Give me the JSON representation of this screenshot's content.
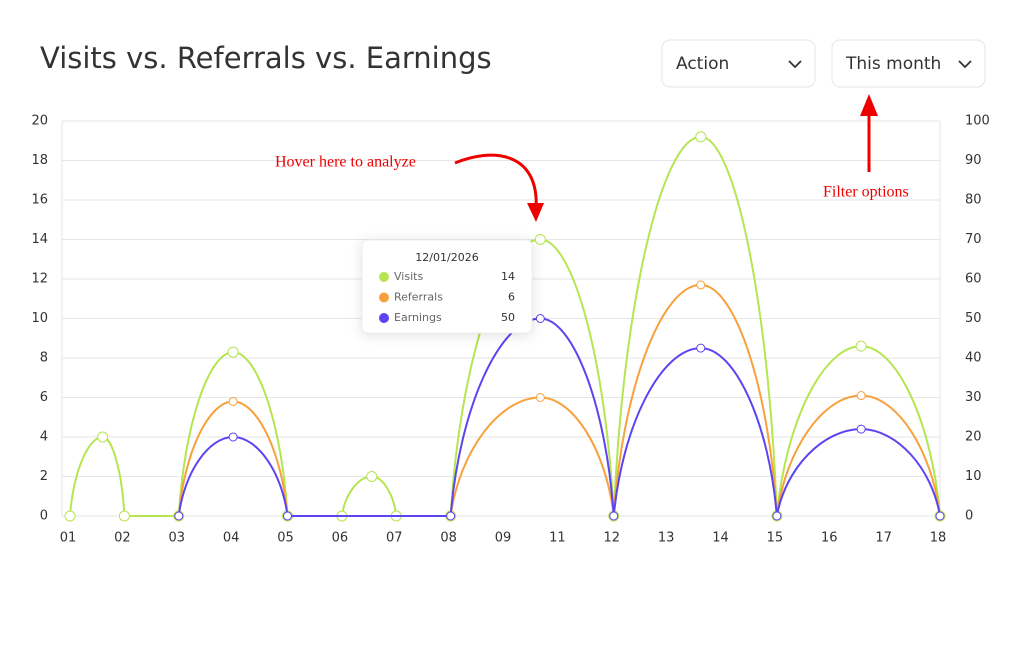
{
  "chart_data": {
    "type": "line",
    "title": "Visits vs. Referrals vs. Earnings",
    "controls": [
      "Action",
      "This month"
    ],
    "annotations": [
      "Hover here to analyze",
      "Filter options"
    ],
    "xlim": [
      0,
      16
    ],
    "xticks": [
      {
        "value": 0,
        "label": "01"
      },
      {
        "value": 1,
        "label": "02"
      },
      {
        "value": 2,
        "label": "03"
      },
      {
        "value": 3,
        "label": "04"
      },
      {
        "value": 4,
        "label": "05"
      },
      {
        "value": 5,
        "label": "06"
      },
      {
        "value": 6,
        "label": "07"
      },
      {
        "value": 7,
        "label": "08"
      },
      {
        "value": 8,
        "label": "09"
      },
      {
        "value": 9,
        "label": "11"
      },
      {
        "value": 10,
        "label": "12"
      },
      {
        "value": 11,
        "label": "13"
      },
      {
        "value": 12,
        "label": "14"
      },
      {
        "value": 13,
        "label": "15"
      },
      {
        "value": 14,
        "label": "16"
      },
      {
        "value": 15,
        "label": "17"
      },
      {
        "value": 16,
        "label": "18"
      }
    ],
    "ylim": [
      0,
      20
    ],
    "yticks": [
      0,
      2,
      4,
      6,
      8,
      10,
      12,
      14,
      16,
      18,
      20
    ],
    "y2lim": [
      0,
      100
    ],
    "y2ticks": [
      0,
      10,
      20,
      30,
      40,
      50,
      60,
      70,
      80,
      90,
      100
    ],
    "grid": true,
    "series": [
      {
        "name": "Visits",
        "color": "#b5e550",
        "x": [
          0,
          0.6,
          1,
          2,
          3,
          4,
          5,
          5.55,
          6,
          7,
          8.65,
          10,
          11.6,
          13,
          14.55,
          16
        ],
        "values": [
          0,
          4,
          0,
          0,
          8.3,
          0,
          0,
          2,
          0,
          0,
          14,
          0,
          19.2,
          0,
          8.6,
          0
        ]
      },
      {
        "name": "Referrals",
        "color": "#f7a13c",
        "x": [
          2,
          3,
          4,
          7,
          8.65,
          10,
          11.6,
          13,
          14.55,
          16
        ],
        "values": [
          0,
          5.8,
          0,
          0,
          6,
          0,
          11.7,
          0,
          6.1,
          0
        ]
      },
      {
        "name": "Earnings",
        "color": "#5b45f0",
        "axis": "y2",
        "x": [
          2,
          3,
          4,
          7,
          8.65,
          10,
          11.6,
          13,
          14.55,
          16
        ],
        "values": [
          0,
          20,
          0,
          0,
          50,
          0,
          42.5,
          0,
          22,
          0
        ]
      }
    ],
    "tooltip": {
      "title": "12/01/2026",
      "rows": [
        [
          "Visits",
          "14"
        ],
        [
          "Referrals",
          "6"
        ],
        [
          "Earnings",
          "50"
        ]
      ]
    }
  }
}
